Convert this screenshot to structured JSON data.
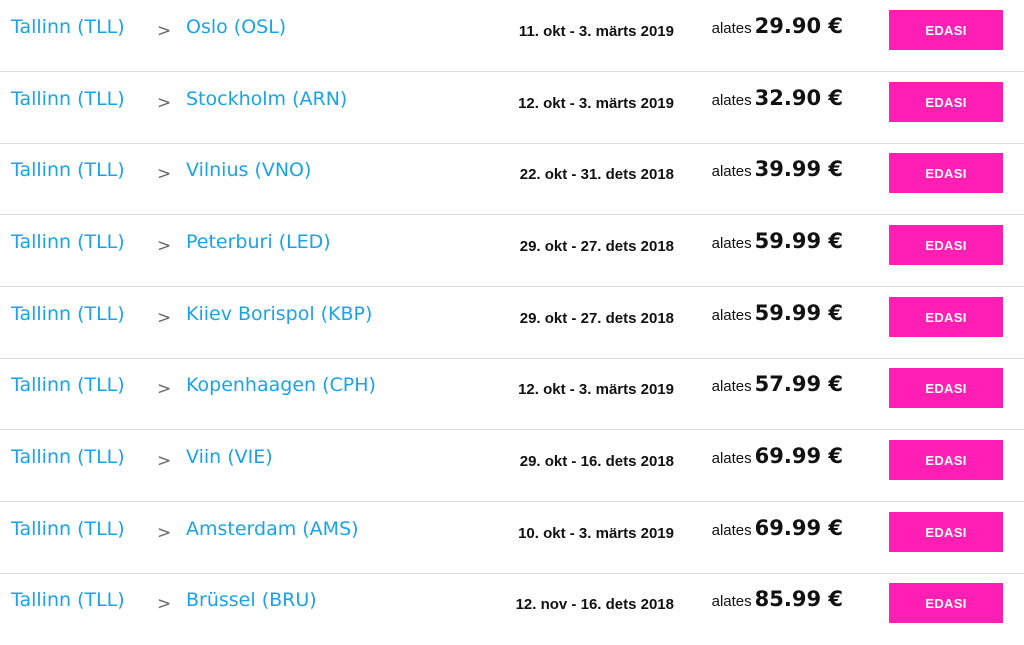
{
  "routes": [
    {
      "origin": "Tallinn (TLL)",
      "separator": ">",
      "destination": "Oslo (OSL)",
      "dates": "11. okt - 3. märts 2019",
      "price_prefix": "alates",
      "price": "29.90 €",
      "button": "EDASI"
    },
    {
      "origin": "Tallinn (TLL)",
      "separator": ">",
      "destination": "Stockholm (ARN)",
      "dates": "12. okt - 3. märts 2019",
      "price_prefix": "alates",
      "price": "32.90 €",
      "button": "EDASI"
    },
    {
      "origin": "Tallinn (TLL)",
      "separator": ">",
      "destination": "Vilnius (VNO)",
      "dates": "22. okt - 31. dets 2018",
      "price_prefix": "alates",
      "price": "39.99 €",
      "button": "EDASI"
    },
    {
      "origin": "Tallinn (TLL)",
      "separator": ">",
      "destination": "Peterburi (LED)",
      "dates": "29. okt - 27. dets 2018",
      "price_prefix": "alates",
      "price": "59.99 €",
      "button": "EDASI"
    },
    {
      "origin": "Tallinn (TLL)",
      "separator": ">",
      "destination": "Kiiev Borispol (KBP)",
      "dates": "29. okt - 27. dets 2018",
      "price_prefix": "alates",
      "price": "59.99 €",
      "button": "EDASI"
    },
    {
      "origin": "Tallinn (TLL)",
      "separator": ">",
      "destination": "Kopenhaagen (CPH)",
      "dates": "12. okt - 3. märts 2019",
      "price_prefix": "alates",
      "price": "57.99 €",
      "button": "EDASI"
    },
    {
      "origin": "Tallinn (TLL)",
      "separator": ">",
      "destination": "Viin (VIE)",
      "dates": "29. okt - 16. dets 2018",
      "price_prefix": "alates",
      "price": "69.99 €",
      "button": "EDASI"
    },
    {
      "origin": "Tallinn (TLL)",
      "separator": ">",
      "destination": "Amsterdam (AMS)",
      "dates": "10. okt - 3. märts 2019",
      "price_prefix": "alates",
      "price": "69.99 €",
      "button": "EDASI"
    },
    {
      "origin": "Tallinn (TLL)",
      "separator": ">",
      "destination": "Brüssel (BRU)",
      "dates": "12. nov - 16. dets 2018",
      "price_prefix": "alates",
      "price": "85.99 €",
      "button": "EDASI"
    }
  ],
  "colors": {
    "link": "#1aa3e8",
    "button": "#ff1fb4",
    "divider": "#dddddd"
  },
  "icons": {
    "separator": "chevron-right-icon"
  }
}
